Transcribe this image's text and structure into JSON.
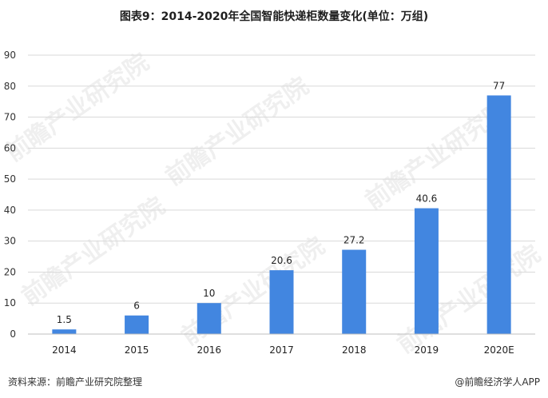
{
  "title": "图表9：2014-2020年全国智能快递柜数量变化(单位：万组)",
  "footer": {
    "source": "资料来源：前瞻产业研究院整理",
    "brand": "@前瞻经济学人APP"
  },
  "watermark": "前瞻产业研究院",
  "chart_data": {
    "type": "bar",
    "categories": [
      "2014",
      "2015",
      "2016",
      "2017",
      "2018",
      "2019",
      "2020E"
    ],
    "values": [
      1.5,
      6,
      10,
      20.6,
      27.2,
      40.6,
      77
    ],
    "value_labels": [
      "1.5",
      "6",
      "10",
      "20.6",
      "27.2",
      "40.6",
      "77"
    ],
    "ylim": [
      0,
      90
    ],
    "yticks": [
      0,
      10,
      20,
      30,
      40,
      50,
      60,
      70,
      80,
      90
    ],
    "grid": true,
    "bar_color": "#4286e0"
  }
}
